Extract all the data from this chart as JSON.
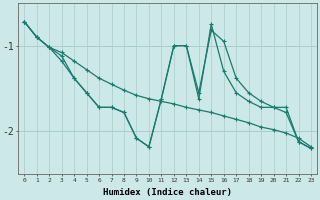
{
  "xlabel": "Humidex (Indice chaleur)",
  "bg_color": "#cce8e8",
  "grid_color": "#aacccc",
  "line_color": "#1a7a6e",
  "x_ticks": [
    0,
    1,
    2,
    3,
    4,
    5,
    6,
    7,
    8,
    9,
    10,
    11,
    12,
    13,
    14,
    15,
    16,
    17,
    18,
    19,
    20,
    21,
    22,
    23
  ],
  "xlim": [
    -0.5,
    23.5
  ],
  "ylim": [
    -2.5,
    -0.5
  ],
  "yticks": [
    -2.0,
    -1.0
  ],
  "ytick_labels": [
    "-2",
    "-1"
  ],
  "series1": {
    "x": [
      0,
      1,
      2,
      3,
      4,
      5,
      6,
      7,
      8,
      9,
      10,
      11,
      12,
      13,
      14,
      15,
      16,
      17,
      18,
      19,
      20,
      21,
      22,
      23
    ],
    "y": [
      -0.72,
      -0.9,
      -1.02,
      -1.08,
      -1.18,
      -1.28,
      -1.38,
      -1.45,
      -1.52,
      -1.58,
      -1.62,
      -1.65,
      -1.68,
      -1.72,
      -1.75,
      -1.78,
      -1.82,
      -1.86,
      -1.9,
      -1.95,
      -1.98,
      -2.02,
      -2.08,
      -2.18
    ]
  },
  "series2": {
    "x": [
      0,
      1,
      2,
      3,
      4,
      5,
      6,
      7,
      8,
      9,
      10,
      11,
      12,
      13,
      14,
      15,
      16,
      17,
      18,
      19,
      20,
      21,
      22,
      23
    ],
    "y": [
      -0.72,
      -0.9,
      -1.02,
      -1.12,
      -1.38,
      -1.55,
      -1.72,
      -1.72,
      -1.78,
      -2.08,
      -2.18,
      -1.62,
      -1.0,
      -1.0,
      -1.55,
      -0.82,
      -0.95,
      -1.38,
      -1.55,
      -1.65,
      -1.72,
      -1.78,
      -2.12,
      -2.2
    ]
  },
  "series3": {
    "x": [
      0,
      1,
      2,
      3,
      4,
      5,
      6,
      7,
      8,
      9,
      10,
      11,
      12,
      13,
      14,
      15,
      16,
      17,
      18,
      19,
      20,
      21,
      22,
      23
    ],
    "y": [
      -0.72,
      -0.9,
      -1.02,
      -1.18,
      -1.38,
      -1.55,
      -1.72,
      -1.72,
      -1.78,
      -2.08,
      -2.18,
      -1.62,
      -1.0,
      -1.0,
      -1.62,
      -0.75,
      -1.3,
      -1.55,
      -1.65,
      -1.72,
      -1.72,
      -1.72,
      -2.12,
      -2.2
    ]
  }
}
